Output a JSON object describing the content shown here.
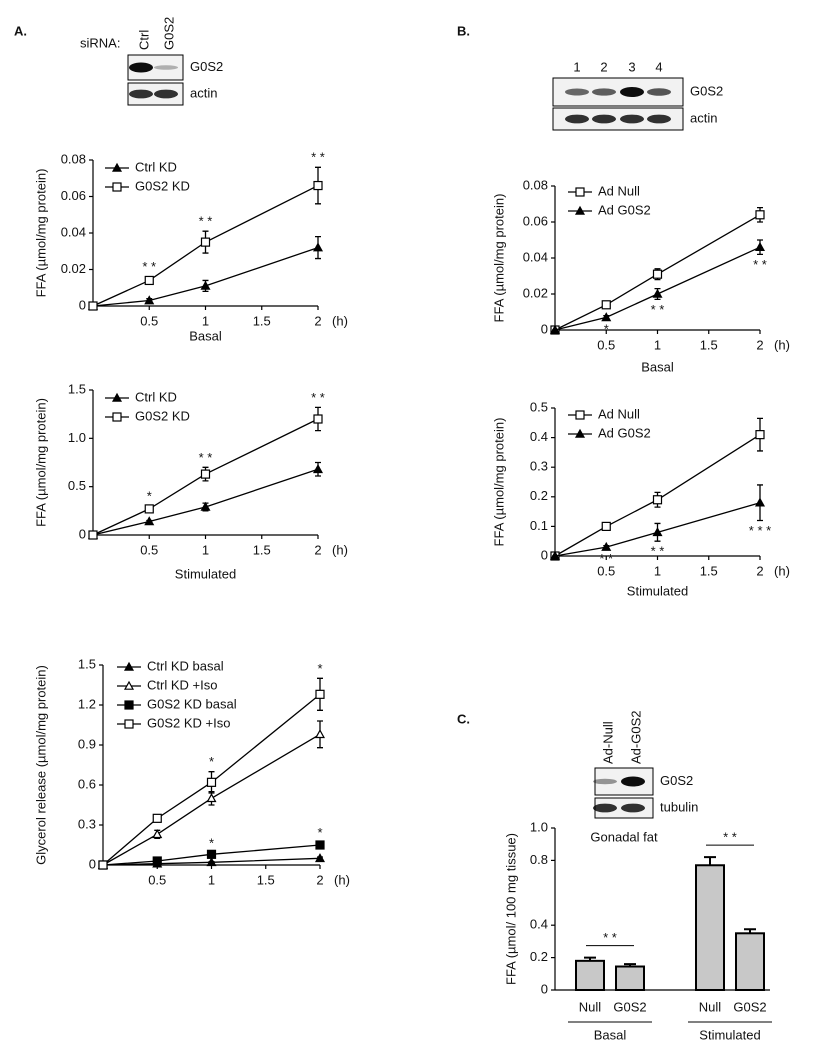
{
  "panel_labels": [
    "A.",
    "B.",
    "C."
  ],
  "blots": [
    {
      "lanes_label": "siRNA:",
      "lanes": [
        "Ctrl",
        "G0S2"
      ],
      "rows": [
        "G0S2",
        "actin"
      ]
    },
    {
      "lanes": [
        "1",
        "2",
        "3",
        "4"
      ],
      "rows": [
        "G0S2",
        "actin"
      ]
    },
    {
      "lanes": [
        "Ad-Null",
        "Ad-G0S2"
      ],
      "rows": [
        "G0S2",
        "tubulin"
      ],
      "caption": "Gonadal fat"
    }
  ],
  "chart_data": [
    {
      "type": "line",
      "x": [
        0,
        0.5,
        1,
        2
      ],
      "xlim": [
        0,
        2
      ],
      "xticks": [
        0.5,
        1,
        1.5,
        2
      ],
      "x_unit": "(h)",
      "x_label": "Basal",
      "y_label": "FFA (µmol/mg protein)",
      "ylim": [
        0,
        0.08
      ],
      "yticks": [
        0,
        0.02,
        0.04,
        0.06,
        0.08
      ],
      "series": [
        {
          "name": "Ctrl KD",
          "marker": "triangle",
          "filled": true,
          "color": "#000",
          "values": [
            0,
            0.003,
            0.011,
            0.032
          ],
          "errors": [
            0,
            0.001,
            0.003,
            0.006
          ]
        },
        {
          "name": "G0S2 KD",
          "marker": "square",
          "filled": false,
          "color": "#000",
          "values": [
            0,
            0.014,
            0.035,
            0.066
          ],
          "errors": [
            0,
            0.002,
            0.006,
            0.01
          ]
        }
      ],
      "annotations": [
        {
          "x": 0.5,
          "text": "* *",
          "series": 1,
          "position": "above"
        },
        {
          "x": 1,
          "text": "* *",
          "series": 1,
          "position": "above"
        },
        {
          "x": 2,
          "text": "* *",
          "series": 1,
          "position": "above"
        }
      ]
    },
    {
      "type": "line",
      "x": [
        0,
        0.5,
        1,
        2
      ],
      "xlim": [
        0,
        2
      ],
      "xticks": [
        0.5,
        1,
        1.5,
        2
      ],
      "x_unit": "(h)",
      "x_label": "Stimulated",
      "y_label": "FFA (µmol/mg protein)",
      "ylim": [
        0,
        1.5
      ],
      "yticks": [
        0,
        0.5,
        {
          "value": 1,
          "label": "1.0"
        },
        1.5
      ],
      "series": [
        {
          "name": "Ctrl KD",
          "marker": "triangle",
          "filled": true,
          "color": "#000",
          "values": [
            0,
            0.14,
            0.29,
            0.68
          ],
          "errors": [
            0,
            0.01,
            0.04,
            0.07
          ]
        },
        {
          "name": "G0S2 KD",
          "marker": "square",
          "filled": false,
          "color": "#000",
          "values": [
            0,
            0.27,
            0.63,
            1.2
          ],
          "errors": [
            0,
            0.03,
            0.07,
            0.12
          ]
        }
      ],
      "annotations": [
        {
          "x": 0.5,
          "text": "*",
          "series": 1,
          "position": "above"
        },
        {
          "x": 1,
          "text": "* *",
          "series": 1,
          "position": "above"
        },
        {
          "x": 2,
          "text": "* *",
          "series": 1,
          "position": "above"
        }
      ]
    },
    {
      "type": "line",
      "x": [
        0,
        0.5,
        1,
        2
      ],
      "xlim": [
        0,
        2
      ],
      "xticks": [
        0.5,
        1,
        1.5,
        2
      ],
      "x_unit": "(h)",
      "y_label": "Glycerol release (µmol/mg protein)",
      "ylim": [
        0,
        1.5
      ],
      "yticks": [
        0,
        0.3,
        0.6,
        0.9,
        1.2,
        1.5
      ],
      "series": [
        {
          "name": "Ctrl KD basal",
          "marker": "triangle",
          "filled": true,
          "color": "#000",
          "values": [
            0,
            0.01,
            0.02,
            0.05
          ],
          "errors": [
            0,
            0.003,
            0.005,
            0.01
          ]
        },
        {
          "name": "Ctrl KD +Iso",
          "marker": "triangle",
          "filled": false,
          "color": "#000",
          "values": [
            0,
            0.23,
            0.5,
            0.98
          ],
          "errors": [
            0,
            0.03,
            0.05,
            0.1
          ]
        },
        {
          "name": "G0S2 KD basal",
          "marker": "square",
          "filled": true,
          "color": "#000",
          "values": [
            0,
            0.03,
            0.08,
            0.15
          ],
          "errors": [
            0,
            0.01,
            0.01,
            0.02
          ]
        },
        {
          "name": "G0S2 KD +Iso",
          "marker": "square",
          "filled": false,
          "color": "#000",
          "values": [
            0,
            0.35,
            0.62,
            1.28
          ],
          "errors": [
            0,
            0.02,
            0.08,
            0.12
          ]
        }
      ],
      "annotations": [
        {
          "x": 1,
          "text": "*",
          "series": 3,
          "position": "above"
        },
        {
          "x": 2,
          "text": "*",
          "series": 3,
          "position": "above"
        },
        {
          "x": 1,
          "text": "*",
          "series": 2,
          "position": "above"
        },
        {
          "x": 2,
          "text": "*",
          "series": 2,
          "position": "above"
        }
      ]
    },
    {
      "type": "line",
      "x": [
        0,
        0.5,
        1,
        2
      ],
      "xlim": [
        0,
        2
      ],
      "xticks": [
        0.5,
        1,
        1.5,
        2
      ],
      "x_unit": "(h)",
      "x_label": "Basal",
      "y_label": "FFA (µmol/mg protein)",
      "ylim": [
        0,
        0.08
      ],
      "yticks": [
        0,
        0.02,
        0.04,
        0.06,
        0.08
      ],
      "series": [
        {
          "name": "Ad Null",
          "marker": "square",
          "filled": false,
          "color": "#000",
          "values": [
            0,
            0.014,
            0.031,
            0.064
          ],
          "errors": [
            0,
            0.001,
            0.003,
            0.004
          ]
        },
        {
          "name": "Ad G0S2",
          "marker": "triangle",
          "filled": true,
          "color": "#000",
          "values": [
            0,
            0.007,
            0.02,
            0.046
          ],
          "errors": [
            0,
            0.001,
            0.003,
            0.004
          ]
        }
      ],
      "annotations": [
        {
          "x": 0.5,
          "text": "*",
          "series": 1,
          "position": "below"
        },
        {
          "x": 1,
          "text": "* *",
          "series": 1,
          "position": "below"
        },
        {
          "x": 2,
          "text": "* *",
          "series": 1,
          "position": "below"
        }
      ]
    },
    {
      "type": "line",
      "x": [
        0,
        0.5,
        1,
        2
      ],
      "xlim": [
        0,
        2
      ],
      "xticks": [
        0.5,
        1,
        1.5,
        2
      ],
      "x_unit": "(h)",
      "x_label": "Stimulated",
      "y_label": "FFA (µmol/mg protein)",
      "ylim": [
        0,
        0.5
      ],
      "yticks": [
        0,
        0.1,
        0.2,
        0.3,
        0.4,
        0.5
      ],
      "series": [
        {
          "name": "Ad Null",
          "marker": "square",
          "filled": false,
          "color": "#000",
          "values": [
            0,
            0.1,
            0.19,
            0.41
          ],
          "errors": [
            0,
            0.01,
            0.025,
            0.055
          ]
        },
        {
          "name": "Ad G0S2",
          "marker": "triangle",
          "filled": true,
          "color": "#000",
          "values": [
            0,
            0.03,
            0.08,
            0.18
          ],
          "errors": [
            0,
            0.005,
            0.03,
            0.06
          ]
        }
      ],
      "annotations": [
        {
          "x": 0.5,
          "text": "* *",
          "series": 1,
          "position": "below"
        },
        {
          "x": 1,
          "text": "* *",
          "series": 1,
          "position": "below"
        },
        {
          "x": 2,
          "text": "* * *",
          "series": 1,
          "position": "below"
        }
      ]
    },
    {
      "type": "bar",
      "categories": [
        "Null",
        "G0S2",
        "Null",
        "G0S2"
      ],
      "groups": [
        "Basal",
        "Stimulated"
      ],
      "y_label": "FFA (µmol/ 100 mg tissue)",
      "ylim": [
        0,
        1
      ],
      "yticks": [
        0,
        0.2,
        0.4,
        0.8,
        {
          "value": 1,
          "label": "1.0"
        }
      ],
      "color": "#c8c8c8",
      "values": [
        0.18,
        0.145,
        0.77,
        0.35
      ],
      "errors": [
        0.02,
        0.015,
        0.05,
        0.025
      ],
      "annotations": [
        {
          "group": 0,
          "text": "* *"
        },
        {
          "group": 1,
          "text": "* *"
        }
      ]
    }
  ]
}
